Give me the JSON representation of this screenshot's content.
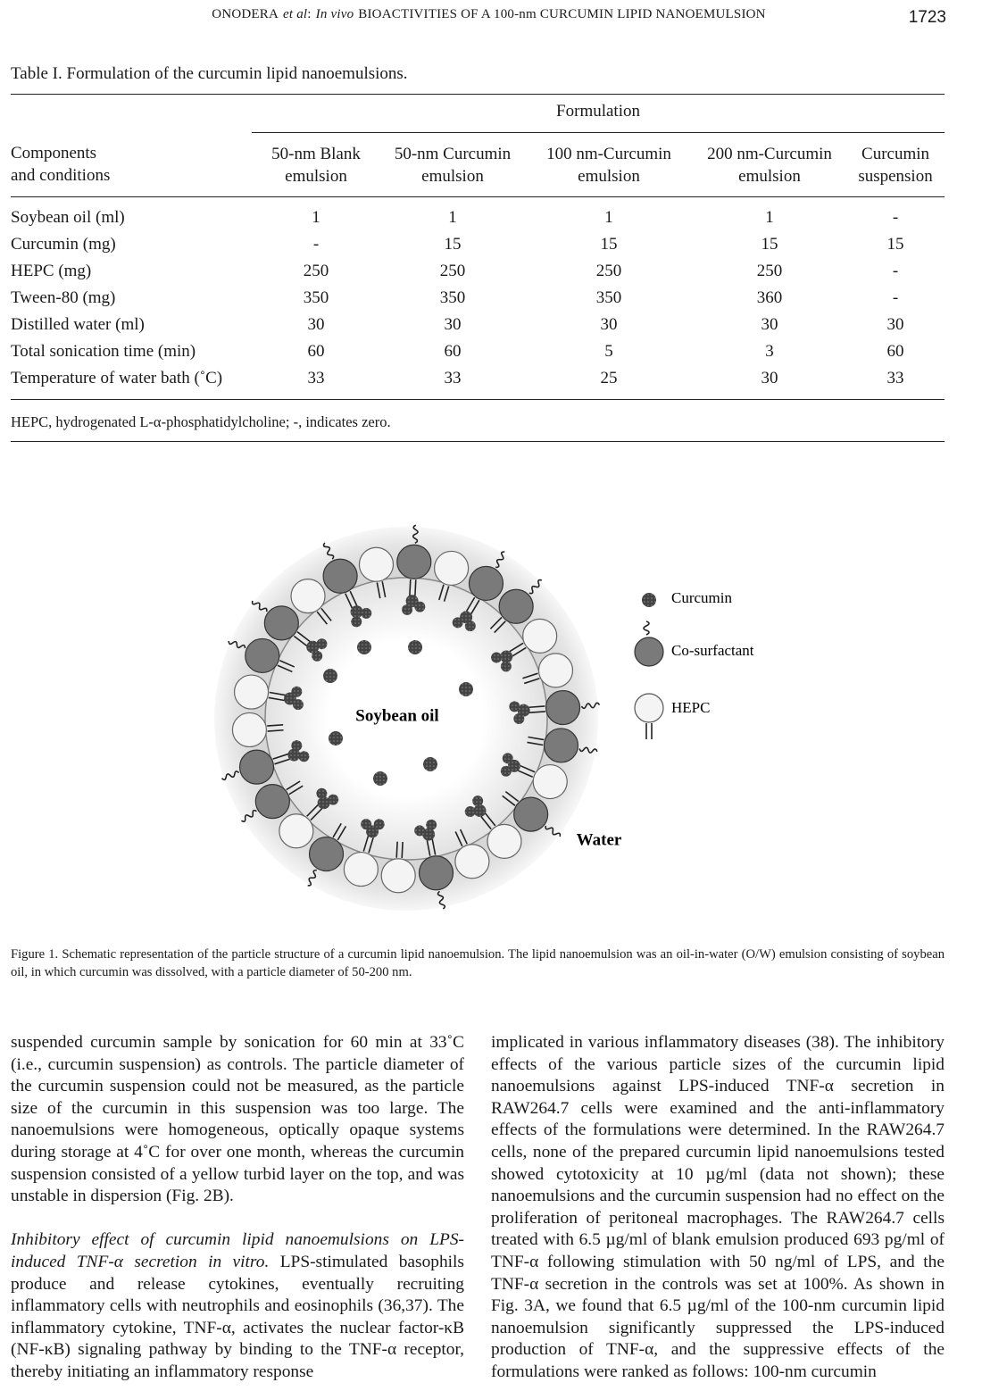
{
  "header": {
    "running_title": [
      "ONODERA",
      "et al",
      ":",
      "In vivo",
      "BIOACTIVITIES OF A 100-nm CURCUMIN LIPID NANOEMULSION"
    ],
    "page_number": "1723"
  },
  "table": {
    "caption": "Table I. Formulation of the curcumin lipid nanoemulsions.",
    "group_header": "Formulation",
    "columns": [
      "Components\nand conditions",
      "50-nm Blank\nemulsion",
      "50-nm Curcumin\nemulsion",
      "100 nm-Curcumin\nemulsion",
      "200 nm-Curcumin\nemulsion",
      "Curcumin\nsuspension"
    ],
    "rows": [
      [
        "Soybean oil (ml)",
        "1",
        "1",
        "1",
        "1",
        "-"
      ],
      [
        "Curcumin (mg)",
        "-",
        "15",
        "15",
        "15",
        "15"
      ],
      [
        "HEPC (mg)",
        "250",
        "250",
        "250",
        "250",
        "-"
      ],
      [
        "Tween-80 (mg)",
        "350",
        "350",
        "350",
        "360",
        "-"
      ],
      [
        "Distilled water (ml)",
        "30",
        "30",
        "30",
        "30",
        "30"
      ],
      [
        "Total sonication time (min)",
        "60",
        "60",
        "5",
        "3",
        "60"
      ],
      [
        "Temperature of water bath (˚C)",
        "33",
        "33",
        "25",
        "30",
        "33"
      ]
    ],
    "footnote": "HEPC, hydrogenated L-α-phosphatidylcholine; -, indicates zero."
  },
  "figure": {
    "labels": {
      "core": "Soybean oil",
      "outside": "Water"
    },
    "legend": [
      "Curcumin",
      "Co-surfactant",
      "HEPC"
    ],
    "caption": "Figure 1. Schematic representation of the particle structure of a curcumin lipid nanoemulsion. The lipid nanoemulsion was an oil-in-water (O/W) emulsion consisting of soybean oil, in which curcumin was dissolved, with a particle diameter of 50-200 nm."
  },
  "body": {
    "left": [
      {
        "text": "suspended curcumin sample by sonication for 60 min at 33˚C (i.e., curcumin suspension) as controls. The particle diameter of the curcumin suspension could not be measured, as the particle size of the curcumin in this suspension was too large. The nanoemulsions were homogeneous, optically opaque systems during storage at 4˚C for over one month, whereas the curcumin suspension consisted of a yellow turbid layer on the top, and was unstable in dispersion (Fig. 2B)."
      },
      {
        "heading": "Inhibitory effect of curcumin lipid nanoemulsions on LPS-induced TNF-α secretion in vitro.",
        "text": "LPS-stimulated basophils produce and release cytokines, eventually recruiting inflammatory cells with neutrophils and eosinophils (36,37). The inflammatory cytokine, TNF-α, activates the nuclear factor-κB (NF-κB) signaling pathway by binding to the TNF-α receptor, thereby initiating an inflammatory response"
      }
    ],
    "right": [
      {
        "text": "implicated in various inflammatory diseases (38). The inhibitory effects of the various particle sizes of the curcumin lipid nanoemulsions against LPS-induced TNF-α secretion in RAW264.7 cells were examined and the anti-inflammatory effects of the formulations were determined. In the RAW264.7 cells, none of the prepared curcumin lipid nanoemulsions tested showed cytotoxicity at 10 µg/ml (data not shown); these nanoemulsions and the curcumin suspension had no effect on the proliferation of peritoneal macrophages. The RAW264.7 cells treated with 6.5 µg/ml of blank emulsion produced 693 pg/ml of TNF-α following stimulation with 50 ng/ml of LPS, and the TNF-α secretion in the controls was set at 100%. As shown in Fig. 3A, we found that 6.5 µg/ml of the 100-nm curcumin lipid nanoemulsion significantly suppressed the LPS-induced production of TNF-α, and the suppressive effects of the formulations were ranked as follows: 100-nm curcumin"
      }
    ]
  }
}
